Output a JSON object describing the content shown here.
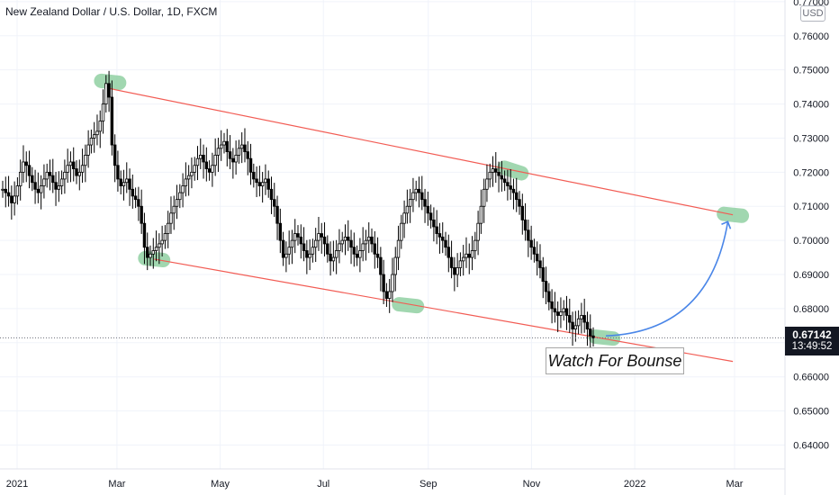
{
  "chart_data": {
    "type": "candlestick",
    "title": "New Zealand Dollar / U.S. Dollar, 1D, FXCM",
    "currency": "USD",
    "x_tick_labels": [
      "2021",
      "Mar",
      "May",
      "Jul",
      "Sep",
      "Nov",
      "2022",
      "Mar"
    ],
    "y_tick_labels": [
      "0.64000",
      "0.65000",
      "0.66000",
      "0.67000",
      "0.68000",
      "0.69000",
      "0.70000",
      "0.71000",
      "0.72000",
      "0.73000",
      "0.74000",
      "0.75000",
      "0.76000",
      "0.77000"
    ],
    "ylim": [
      0.633,
      0.7705
    ],
    "last_price": "0.67142",
    "countdown": "13:49:52",
    "annotation": "Watch For Bounse",
    "colors": {
      "candle": "#000000",
      "channel": "#f25c54",
      "highlight": "#81c995",
      "arrow": "#4a86e8",
      "badge": "#131722"
    },
    "channel": {
      "upper": [
        {
          "date": "2021-02-25",
          "price": 0.7445
        },
        {
          "date": "2022-02-28",
          "price": 0.7075
        }
      ],
      "lower": [
        {
          "date": "2021-03-23",
          "price": 0.6945
        },
        {
          "date": "2022-02-28",
          "price": 0.6645
        }
      ]
    },
    "highlights": [
      {
        "date": "2021-02-25",
        "price": 0.7465
      },
      {
        "date": "2021-03-23",
        "price": 0.6945
      },
      {
        "date": "2021-08-20",
        "price": 0.681
      },
      {
        "date": "2021-10-21",
        "price": 0.7205
      },
      {
        "date": "2021-12-14",
        "price": 0.6715
      },
      {
        "date": "2022-02-28",
        "price": 0.7075
      }
    ],
    "arrow": {
      "from": {
        "date": "2021-12-16",
        "price": 0.672
      },
      "to": {
        "date": "2022-02-25",
        "price": 0.7055
      }
    },
    "close_series": [
      0.715,
      0.714,
      0.713,
      0.711,
      0.713,
      0.716,
      0.72,
      0.723,
      0.722,
      0.719,
      0.717,
      0.715,
      0.714,
      0.716,
      0.718,
      0.72,
      0.719,
      0.717,
      0.715,
      0.716,
      0.718,
      0.72,
      0.722,
      0.723,
      0.721,
      0.719,
      0.72,
      0.722,
      0.725,
      0.728,
      0.73,
      0.731,
      0.732,
      0.735,
      0.74,
      0.746,
      0.742,
      0.728,
      0.722,
      0.718,
      0.716,
      0.717,
      0.718,
      0.715,
      0.713,
      0.712,
      0.71,
      0.705,
      0.698,
      0.695,
      0.696,
      0.697,
      0.698,
      0.699,
      0.7,
      0.702,
      0.705,
      0.708,
      0.71,
      0.712,
      0.714,
      0.716,
      0.718,
      0.719,
      0.72,
      0.722,
      0.724,
      0.725,
      0.723,
      0.721,
      0.72,
      0.722,
      0.725,
      0.727,
      0.728,
      0.729,
      0.726,
      0.724,
      0.723,
      0.725,
      0.727,
      0.728,
      0.726,
      0.724,
      0.72,
      0.718,
      0.717,
      0.716,
      0.717,
      0.718,
      0.715,
      0.712,
      0.71,
      0.705,
      0.7,
      0.695,
      0.696,
      0.698,
      0.7,
      0.702,
      0.701,
      0.699,
      0.697,
      0.695,
      0.696,
      0.698,
      0.7,
      0.702,
      0.701,
      0.699,
      0.696,
      0.694,
      0.695,
      0.697,
      0.699,
      0.7,
      0.701,
      0.7,
      0.698,
      0.696,
      0.695,
      0.697,
      0.699,
      0.7,
      0.701,
      0.699,
      0.696,
      0.695,
      0.69,
      0.685,
      0.683,
      0.685,
      0.69,
      0.695,
      0.7,
      0.705,
      0.708,
      0.71,
      0.712,
      0.714,
      0.715,
      0.714,
      0.712,
      0.71,
      0.708,
      0.706,
      0.704,
      0.702,
      0.701,
      0.7,
      0.698,
      0.695,
      0.692,
      0.69,
      0.692,
      0.694,
      0.695,
      0.696,
      0.695,
      0.697,
      0.7,
      0.705,
      0.71,
      0.715,
      0.718,
      0.72,
      0.721,
      0.72,
      0.719,
      0.718,
      0.717,
      0.716,
      0.715,
      0.714,
      0.712,
      0.71,
      0.706,
      0.703,
      0.7,
      0.698,
      0.696,
      0.694,
      0.692,
      0.688,
      0.685,
      0.682,
      0.68,
      0.679,
      0.678,
      0.679,
      0.68,
      0.678,
      0.676,
      0.674,
      0.675,
      0.677,
      0.678,
      0.676,
      0.674,
      0.672,
      0.6714
    ]
  }
}
